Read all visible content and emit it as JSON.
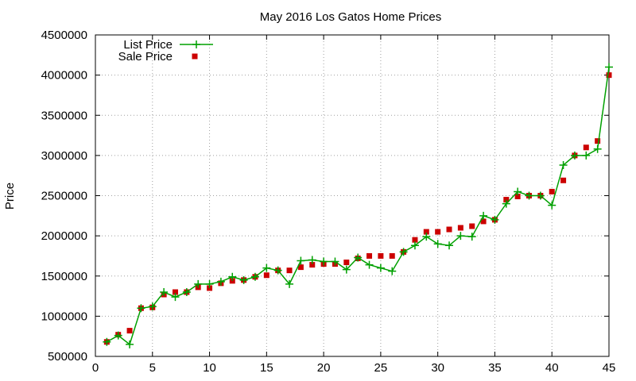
{
  "chart_data": {
    "type": "line",
    "title": "May 2016 Los Gatos Home Prices",
    "xlabel": "",
    "ylabel": "Price",
    "xlim": [
      0,
      45
    ],
    "ylim": [
      500000,
      4500000
    ],
    "xticks": [
      0,
      5,
      10,
      15,
      20,
      25,
      30,
      35,
      40,
      45
    ],
    "yticks": [
      500000,
      1000000,
      1500000,
      2000000,
      2500000,
      3000000,
      3500000,
      4000000,
      4500000
    ],
    "grid": true,
    "legend_position": "top-left",
    "x": [
      1,
      2,
      3,
      4,
      5,
      6,
      7,
      8,
      9,
      10,
      11,
      12,
      13,
      14,
      15,
      16,
      17,
      18,
      19,
      20,
      21,
      22,
      23,
      24,
      25,
      26,
      27,
      28,
      29,
      30,
      31,
      32,
      33,
      34,
      35,
      36,
      37,
      38,
      39,
      40,
      41,
      42,
      43,
      44,
      45
    ],
    "series": [
      {
        "name": "List Price",
        "style": "line-with-plus-markers",
        "color": "#00a000",
        "values": [
          680000,
          760000,
          650000,
          1100000,
          1120000,
          1300000,
          1240000,
          1300000,
          1400000,
          1400000,
          1430000,
          1490000,
          1450000,
          1490000,
          1600000,
          1570000,
          1400000,
          1690000,
          1700000,
          1680000,
          1680000,
          1580000,
          1730000,
          1640000,
          1600000,
          1560000,
          1800000,
          1880000,
          1990000,
          1900000,
          1880000,
          2000000,
          1990000,
          2250000,
          2200000,
          2400000,
          2550000,
          2500000,
          2500000,
          2380000,
          2880000,
          3000000,
          3000000,
          3080000,
          4100000
        ]
      },
      {
        "name": "Sale Price",
        "style": "square-markers",
        "color": "#cc0000",
        "values": [
          680000,
          770000,
          820000,
          1100000,
          1110000,
          1270000,
          1300000,
          1300000,
          1360000,
          1350000,
          1410000,
          1440000,
          1450000,
          1490000,
          1510000,
          1570000,
          1570000,
          1610000,
          1640000,
          1650000,
          1650000,
          1670000,
          1720000,
          1750000,
          1750000,
          1750000,
          1800000,
          1950000,
          2050000,
          2050000,
          2080000,
          2100000,
          2120000,
          2180000,
          2200000,
          2450000,
          2490000,
          2500000,
          2500000,
          2550000,
          2690000,
          3000000,
          3100000,
          3180000,
          4000000
        ]
      }
    ]
  }
}
